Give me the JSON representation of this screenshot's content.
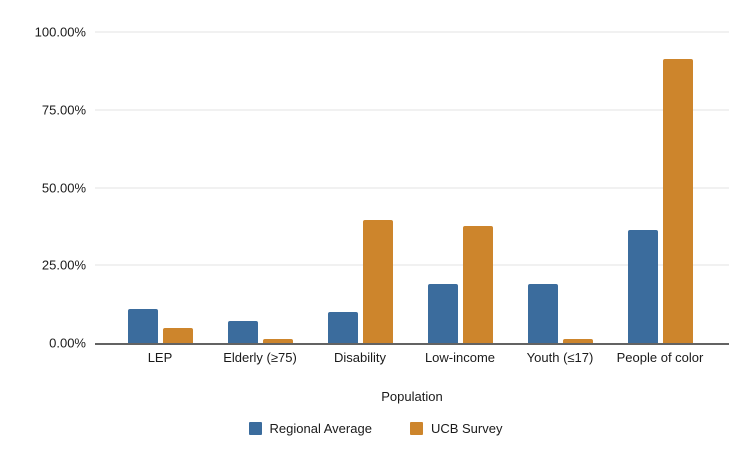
{
  "chart_data": {
    "type": "bar",
    "title": "",
    "xlabel": "Population",
    "ylabel": "",
    "categories": [
      "LEP",
      "Elderly (≥75)",
      "Disability",
      "Low-income",
      "Youth (≤17)",
      "People of color"
    ],
    "series": [
      {
        "name": "Regional Average",
        "color": "#3B6C9D",
        "values": [
          11,
          7,
          10,
          19,
          19,
          36.5
        ]
      },
      {
        "name": "UCB Survey",
        "color": "#CD852C",
        "values": [
          4.7,
          1.2,
          39.7,
          37.5,
          1.2,
          91.2
        ]
      }
    ],
    "ylim": [
      0,
      100
    ],
    "yticks": [
      {
        "value": 0,
        "label": "0.00%"
      },
      {
        "value": 25,
        "label": "25.00%"
      },
      {
        "value": 50,
        "label": "50.00%"
      },
      {
        "value": 75,
        "label": "75.00%"
      },
      {
        "value": 100,
        "label": "100.00%"
      }
    ],
    "grid": true,
    "legend_position": "bottom"
  }
}
